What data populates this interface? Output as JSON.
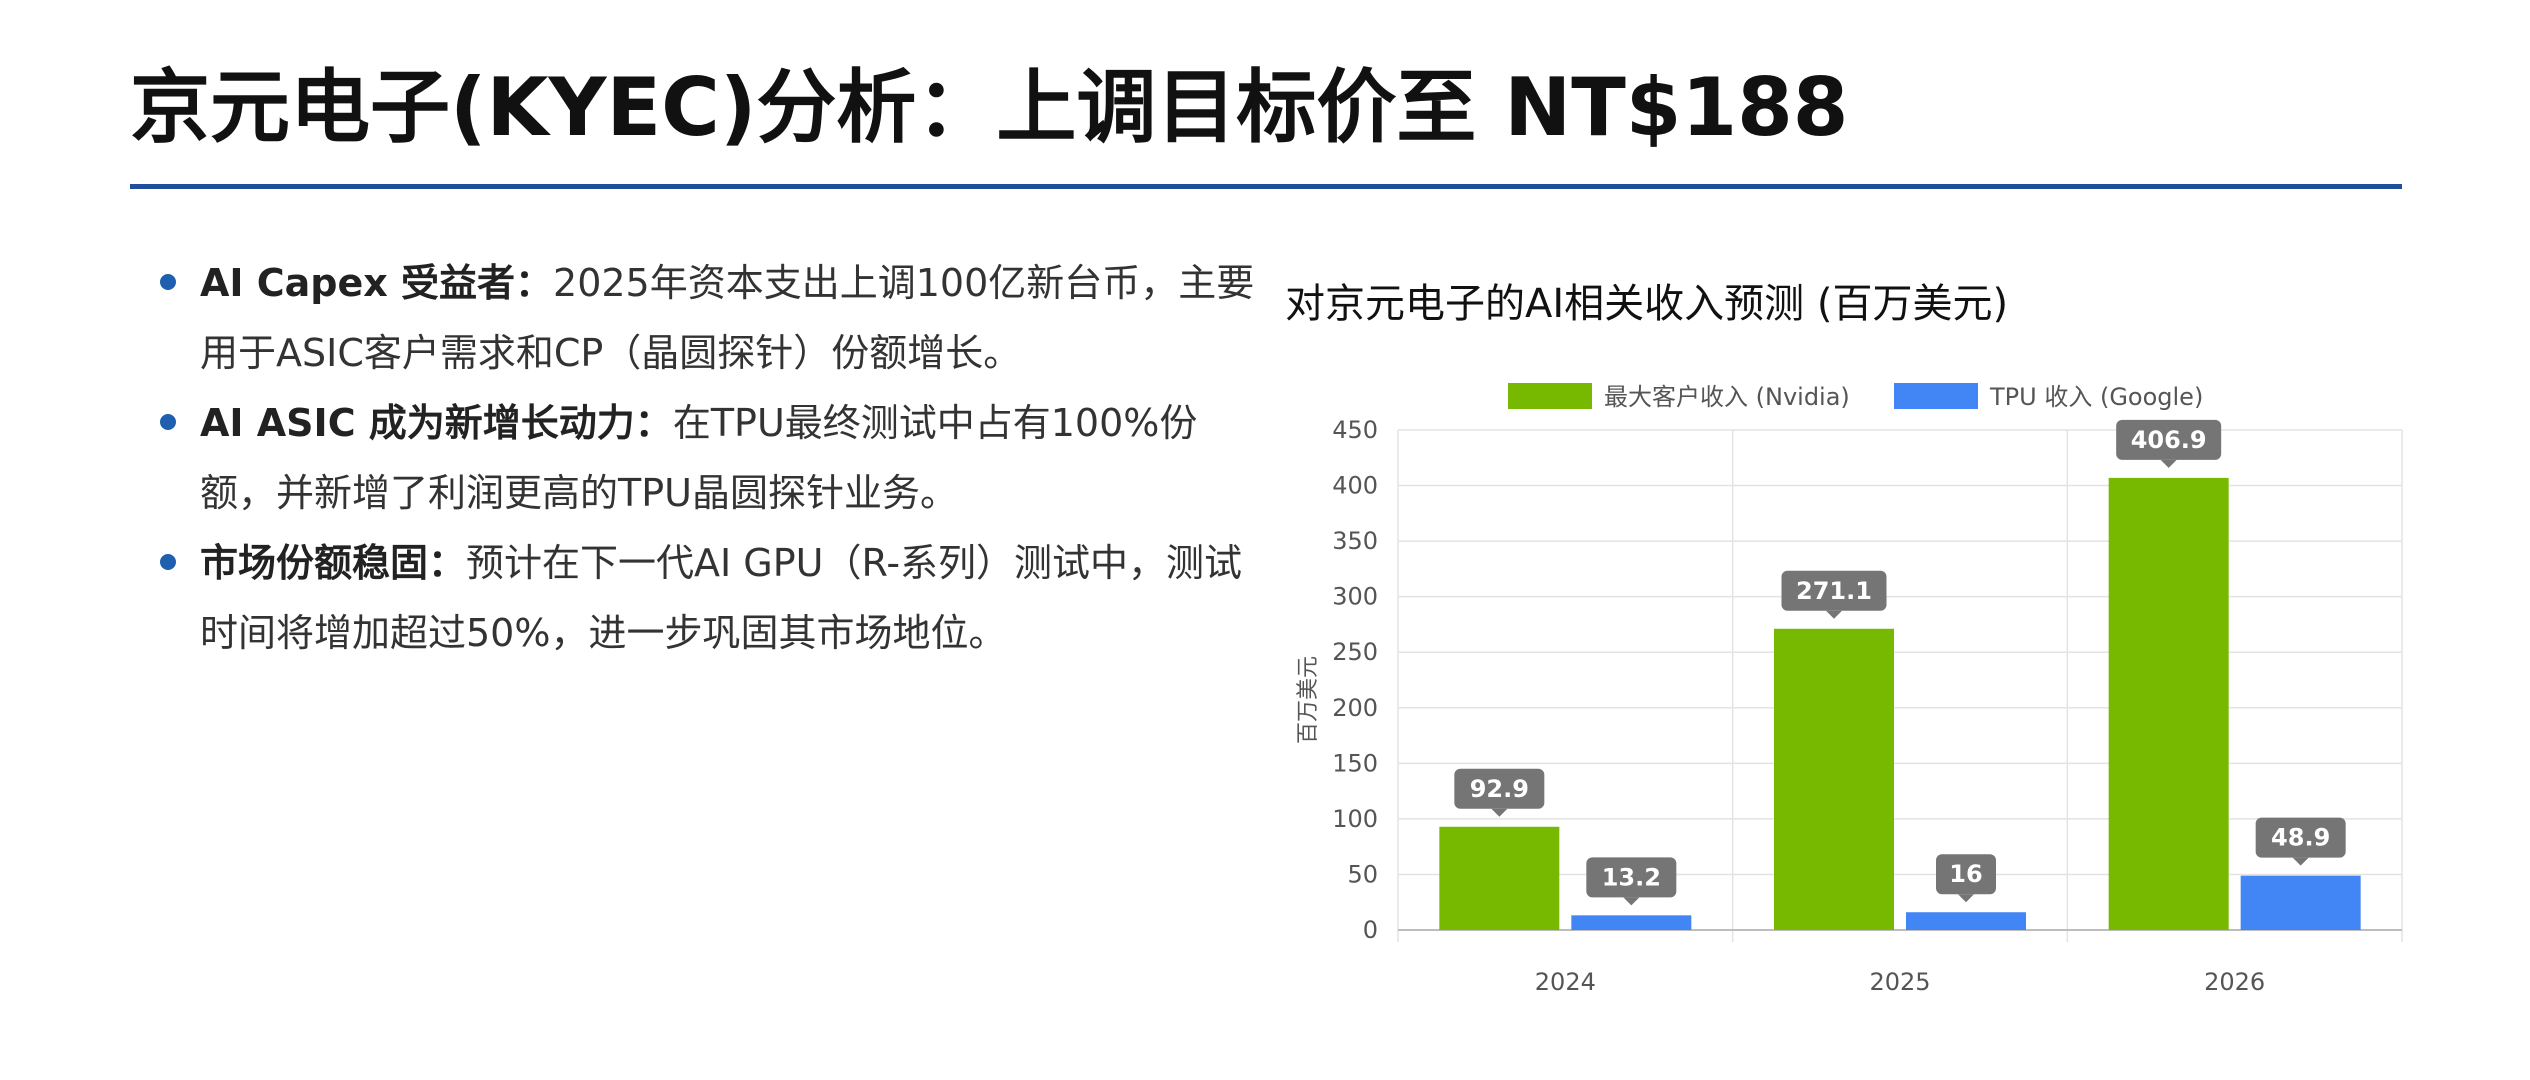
{
  "page": {
    "title": "京元电子(KYEC)分析：上调目标价至 NT$188",
    "accent_color": "#1f4e9c",
    "bullet_color": "#1f5fb0"
  },
  "bullets": [
    {
      "title": "AI Capex 受益者：",
      "text": "2025年资本支出上调100亿新台币，主要用于ASIC客户需求和CP（晶圆探针）份额增长。"
    },
    {
      "title": "AI ASIC 成为新增长动力：",
      "text": "在TPU最终测试中占有100%份额，并新增了利润更高的TPU晶圆探针业务。"
    },
    {
      "title": "市场份额稳固：",
      "text": "预计在下一代AI GPU（R-系列）测试中，测试时间将增加超过50%，进一步巩固其市场地位。"
    }
  ],
  "chart_data": {
    "type": "bar",
    "title": "对京元电子的AI相关收入预测 (百万美元)",
    "ylabel": "百万美元",
    "xlabel": "",
    "categories": [
      "2024",
      "2025",
      "2026"
    ],
    "series": [
      {
        "name": "最大客户收入 (Nvidia)",
        "color": "#76b900",
        "values": [
          92.9,
          271.1,
          406.9
        ]
      },
      {
        "name": "TPU 收入 (Google)",
        "color": "#4285f4",
        "values": [
          13.2,
          16,
          48.9
        ]
      }
    ],
    "ylim": [
      0,
      450
    ],
    "yticks": [
      0,
      50,
      100,
      150,
      200,
      250,
      300,
      350,
      400,
      450
    ],
    "grid": true,
    "legend_position": "top-center",
    "data_labels": true
  }
}
